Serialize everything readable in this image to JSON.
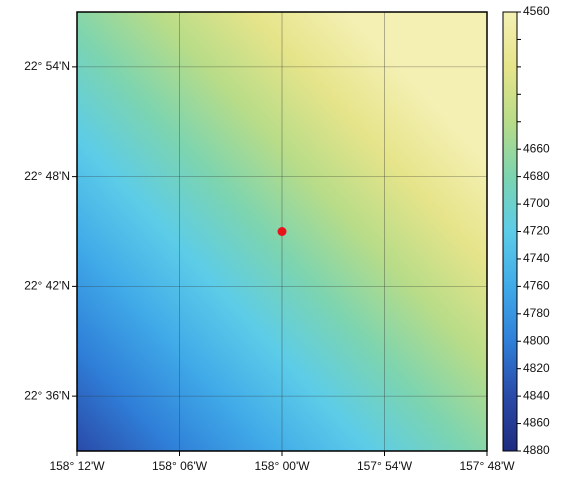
{
  "map": {
    "xlim": [
      -158.2,
      -157.8
    ],
    "ylim": [
      22.55,
      22.95
    ],
    "xticks": [
      {
        "value": -158.2,
        "label": "158° 12'W"
      },
      {
        "value": -158.1,
        "label": "158° 06'W"
      },
      {
        "value": -158.0,
        "label": "158° 00'W"
      },
      {
        "value": -157.9,
        "label": "157° 54'W"
      },
      {
        "value": -157.8,
        "label": "157° 48'W"
      }
    ],
    "yticks": [
      {
        "value": 22.6,
        "label": "22° 36'N"
      },
      {
        "value": 22.7,
        "label": "22° 42'N"
      },
      {
        "value": 22.8,
        "label": "22° 48'N"
      },
      {
        "value": 22.9,
        "label": "22° 54'N"
      }
    ],
    "grid": true,
    "marker": {
      "lon": -158.0,
      "lat": 22.75,
      "color": "#e8141c"
    }
  },
  "colorbar": {
    "lim": [
      4560,
      4880
    ],
    "ticks": [
      4560,
      4580,
      4600,
      4620,
      4640,
      4660,
      4680,
      4700,
      4720,
      4740,
      4760,
      4780,
      4800,
      4820,
      4840,
      4860,
      4880
    ],
    "labeled": [
      4560,
      4660,
      4680,
      4700,
      4720,
      4740,
      4760,
      4780,
      4800,
      4820,
      4840,
      4860,
      4880
    ],
    "colors": [
      "#f4f0b4",
      "#e6e48a",
      "#b8dc88",
      "#7cd4b0",
      "#5ccce8",
      "#40aae8",
      "#2f7fd8",
      "#2a4aa8",
      "#1e2c80"
    ]
  }
}
